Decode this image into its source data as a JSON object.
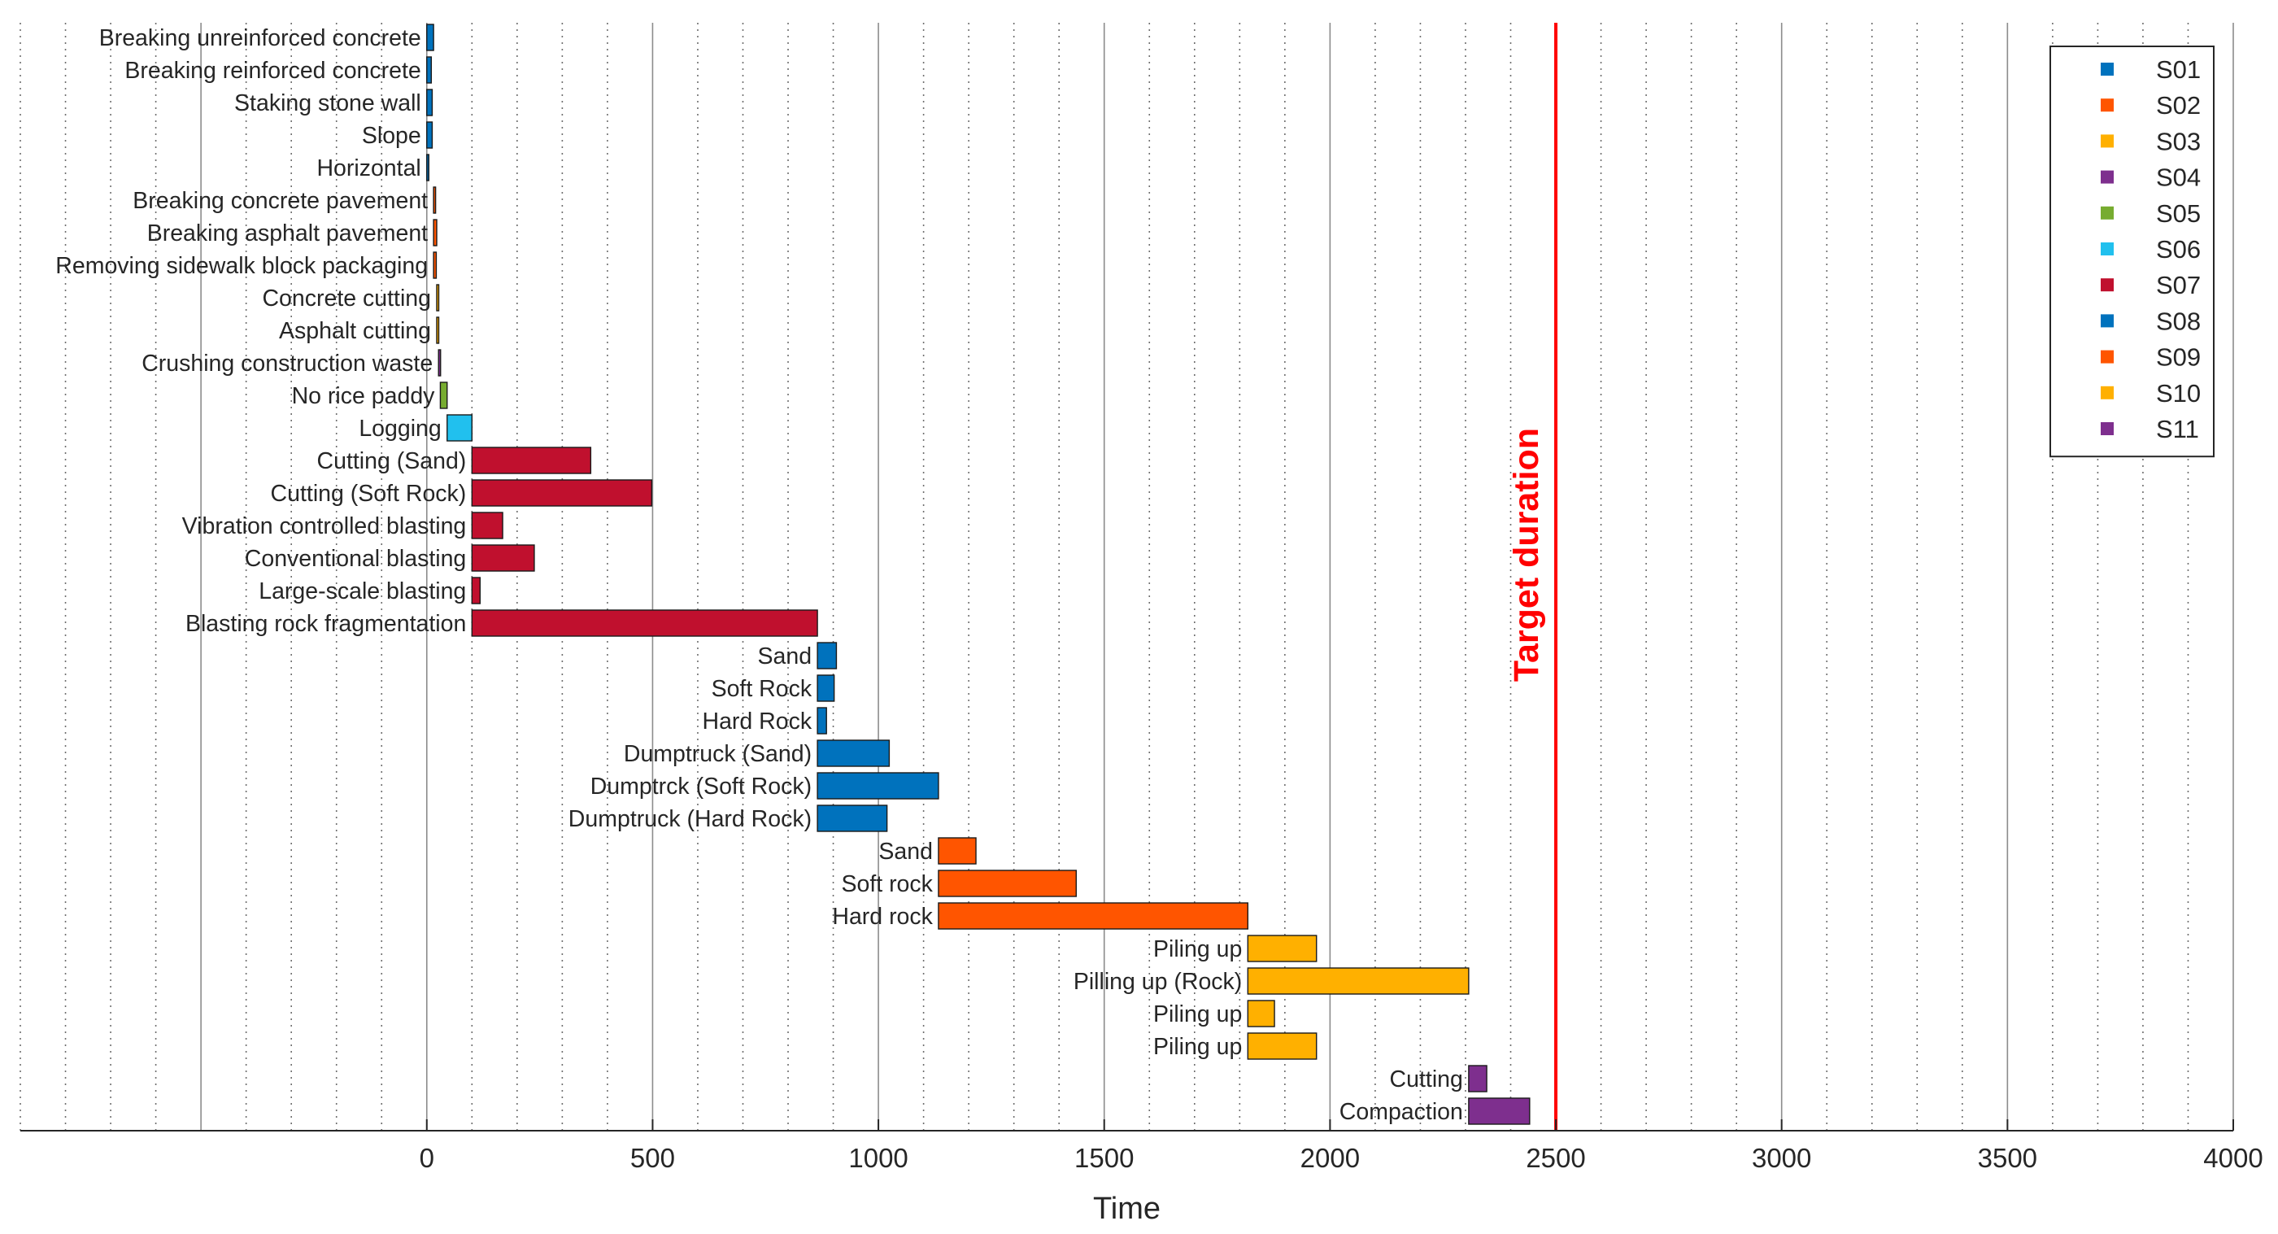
{
  "chart_data": {
    "type": "bar",
    "orientation": "horizontal-gantt",
    "title": "",
    "xlabel": "Time",
    "ylabel": "",
    "xlim": [
      -900,
      4000
    ],
    "xticks": [
      0,
      500,
      1000,
      1500,
      2000,
      2500,
      3000,
      3500,
      4000
    ],
    "minor_grid_step": 100,
    "grid": "vertical major solid, minor dotted",
    "legend_position": "top-right",
    "target": {
      "label": "Target duration",
      "value": 2500,
      "color": "#ff0000"
    },
    "series": [
      {
        "name": "S01",
        "color": "#0072bd"
      },
      {
        "name": "S02",
        "color": "#ff5500"
      },
      {
        "name": "S03",
        "color": "#ffb000"
      },
      {
        "name": "S04",
        "color": "#7e2f8e"
      },
      {
        "name": "S05",
        "color": "#77ac30"
      },
      {
        "name": "S06",
        "color": "#21c0ee"
      },
      {
        "name": "S07",
        "color": "#c0102e"
      },
      {
        "name": "S08",
        "color": "#0072bd"
      },
      {
        "name": "S09",
        "color": "#ff5500"
      },
      {
        "name": "S10",
        "color": "#ffb000"
      },
      {
        "name": "S11",
        "color": "#7e2f8e"
      }
    ],
    "tasks": [
      {
        "label": "Breaking unreinforced concrete",
        "series": "S01",
        "start": 0,
        "end": 15
      },
      {
        "label": "Breaking reinforced concrete",
        "series": "S01",
        "start": 0,
        "end": 10
      },
      {
        "label": "Staking stone wall",
        "series": "S01",
        "start": 0,
        "end": 12
      },
      {
        "label": "Slope",
        "series": "S01",
        "start": 0,
        "end": 12
      },
      {
        "label": "Horizontal",
        "series": "S01",
        "start": 0,
        "end": 3
      },
      {
        "label": "Breaking concrete pavement",
        "series": "S02",
        "start": 15,
        "end": 19
      },
      {
        "label": "Breaking asphalt pavement",
        "series": "S02",
        "start": 15,
        "end": 22
      },
      {
        "label": "Removing sidewalk block packaging",
        "series": "S02",
        "start": 15,
        "end": 21
      },
      {
        "label": "Concrete cutting",
        "series": "S03",
        "start": 22,
        "end": 25
      },
      {
        "label": "Asphalt cutting",
        "series": "S03",
        "start": 22,
        "end": 26
      },
      {
        "label": "Crushing construction waste",
        "series": "S04",
        "start": 26,
        "end": 30
      },
      {
        "label": "No rice paddy",
        "series": "S05",
        "start": 30,
        "end": 45
      },
      {
        "label": "Logging",
        "series": "S06",
        "start": 45,
        "end": 100
      },
      {
        "label": "Cutting (Sand)",
        "series": "S07",
        "start": 100,
        "end": 363
      },
      {
        "label": "Cutting (Soft Rock)",
        "series": "S07",
        "start": 100,
        "end": 498
      },
      {
        "label": "Vibration controlled blasting",
        "series": "S07",
        "start": 100,
        "end": 168
      },
      {
        "label": "Conventional blasting",
        "series": "S07",
        "start": 100,
        "end": 238
      },
      {
        "label": "Large-scale blasting",
        "series": "S07",
        "start": 100,
        "end": 118
      },
      {
        "label": "Blasting rock fragmentation",
        "series": "S07",
        "start": 100,
        "end": 865
      },
      {
        "label": "Sand",
        "series": "S08",
        "start": 865,
        "end": 907
      },
      {
        "label": "Soft Rock",
        "series": "S08",
        "start": 865,
        "end": 902
      },
      {
        "label": "Hard Rock",
        "series": "S08",
        "start": 865,
        "end": 885
      },
      {
        "label": "Dumptruck (Sand)",
        "series": "S08",
        "start": 865,
        "end": 1024
      },
      {
        "label": "Dumptrck (Soft Rock)",
        "series": "S08",
        "start": 865,
        "end": 1133
      },
      {
        "label": "Dumptruck (Hard Rock)",
        "series": "S08",
        "start": 865,
        "end": 1019
      },
      {
        "label": "Sand",
        "series": "S09",
        "start": 1133,
        "end": 1216
      },
      {
        "label": "Soft rock",
        "series": "S09",
        "start": 1133,
        "end": 1438
      },
      {
        "label": "Hard rock",
        "series": "S09",
        "start": 1133,
        "end": 1818
      },
      {
        "label": "Piling up",
        "series": "S10",
        "start": 1818,
        "end": 1970
      },
      {
        "label": "Pilling up (Rock)",
        "series": "S10",
        "start": 1818,
        "end": 2307
      },
      {
        "label": "Piling up",
        "series": "S10",
        "start": 1818,
        "end": 1877
      },
      {
        "label": "Piling up",
        "series": "S10",
        "start": 1818,
        "end": 1970
      },
      {
        "label": "Cutting",
        "series": "S11",
        "start": 2307,
        "end": 2347
      },
      {
        "label": "Compaction",
        "series": "S11",
        "start": 2307,
        "end": 2442
      }
    ]
  }
}
